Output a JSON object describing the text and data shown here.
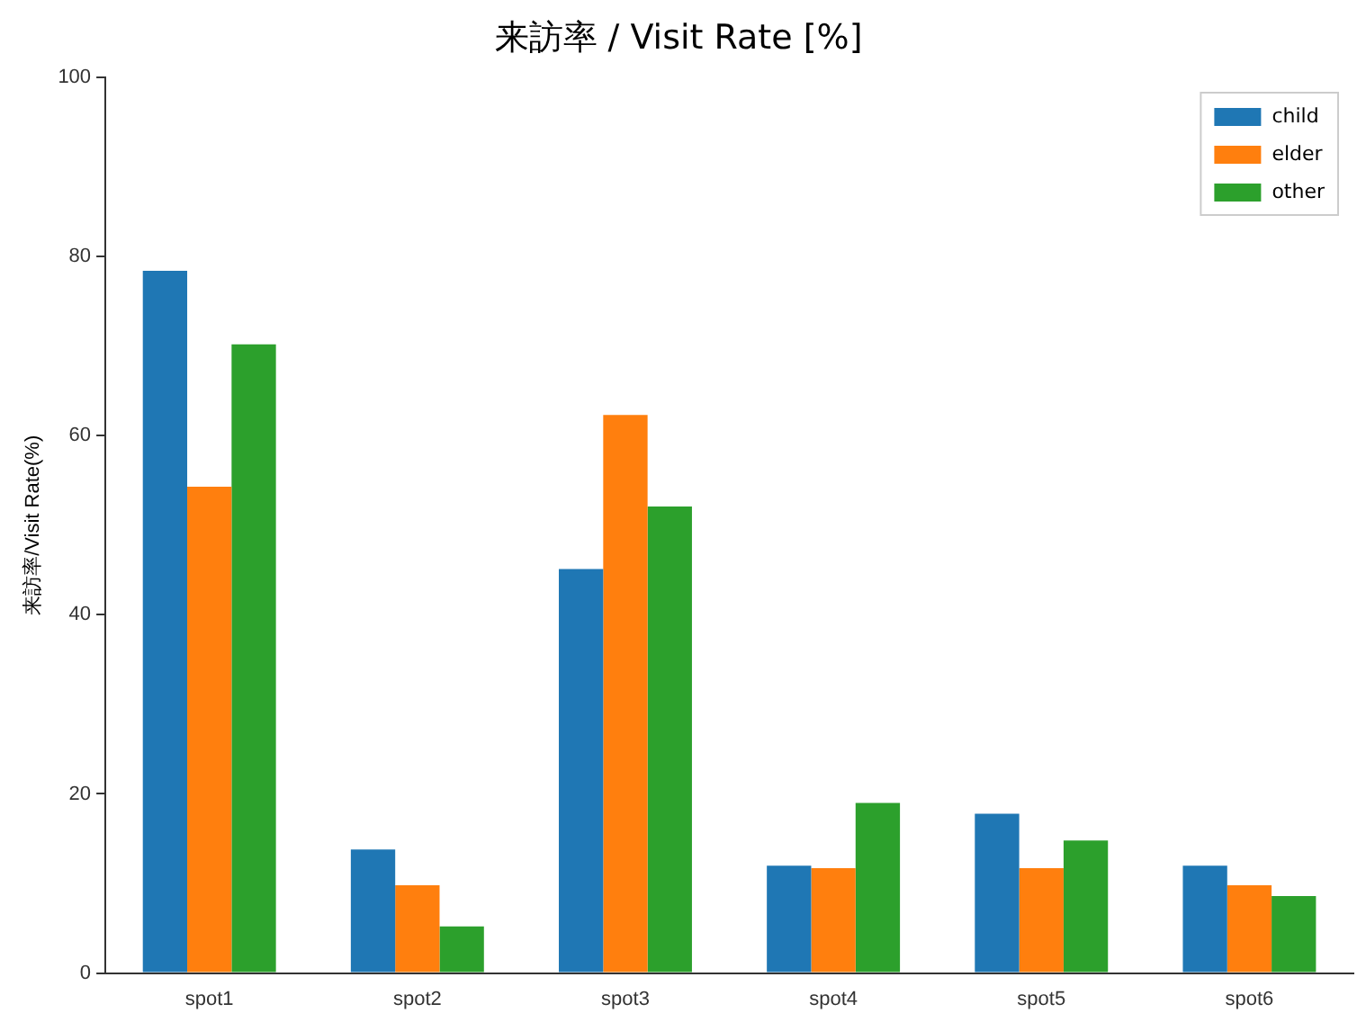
{
  "chart_data": {
    "type": "bar",
    "title": "来訪率 / Visit Rate [%]",
    "ylabel": "来訪率/Visit Rate(%)",
    "categories": [
      "spot1",
      "spot2",
      "spot3",
      "spot4",
      "spot5",
      "spot6"
    ],
    "series": [
      {
        "name": "child",
        "color": "#1f77b4",
        "values": [
          78.4,
          13.8,
          45.1,
          12,
          17.8,
          12
        ]
      },
      {
        "name": "elder",
        "color": "#ff7f0e",
        "values": [
          54.3,
          9.8,
          62.3,
          11.7,
          11.7,
          9.8
        ]
      },
      {
        "name": "other",
        "color": "#2ca02c",
        "values": [
          70.2,
          5.2,
          52.1,
          19,
          14.8,
          8.6
        ]
      }
    ],
    "ylim": [
      0,
      100
    ],
    "yticks": [
      0,
      20,
      40,
      60,
      80,
      100
    ],
    "grid": false,
    "legend": "top right"
  }
}
